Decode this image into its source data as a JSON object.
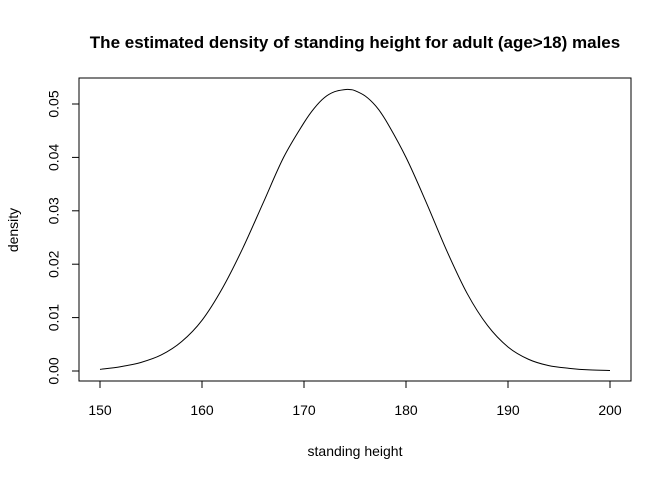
{
  "chart_data": {
    "type": "line",
    "title": "The estimated density of standing height for adult (age>18) males",
    "xlabel": "standing height",
    "ylabel": "density",
    "xlim": [
      150,
      200
    ],
    "ylim": [
      0,
      0.05
    ],
    "x_ticks": [
      150,
      160,
      170,
      180,
      190,
      200
    ],
    "x_tick_labels": [
      "150",
      "160",
      "170",
      "180",
      "190",
      "200"
    ],
    "y_ticks": [
      0,
      0.01,
      0.02,
      0.03,
      0.04,
      0.05
    ],
    "y_tick_labels": [
      "0.00",
      "0.01",
      "0.02",
      "0.03",
      "0.04",
      "0.05"
    ],
    "grid": false,
    "legend": "none",
    "series": [
      {
        "color": "#000000",
        "x": [
          150,
          152,
          154,
          156,
          158,
          160,
          162,
          164,
          166,
          168,
          170,
          171,
          172,
          173,
          174,
          174.5,
          175,
          176,
          177,
          178,
          180,
          182,
          184,
          186,
          188,
          190,
          192,
          194,
          196,
          198,
          200
        ],
        "y": [
          0.0003,
          0.0008,
          0.0016,
          0.003,
          0.0055,
          0.0095,
          0.0155,
          0.023,
          0.0315,
          0.04,
          0.0465,
          0.0492,
          0.0512,
          0.0523,
          0.0527,
          0.0527,
          0.0525,
          0.0515,
          0.0497,
          0.047,
          0.04,
          0.0315,
          0.0225,
          0.0145,
          0.0085,
          0.0045,
          0.0022,
          0.001,
          0.0005,
          0.0002,
          0.0001
        ]
      }
    ]
  }
}
